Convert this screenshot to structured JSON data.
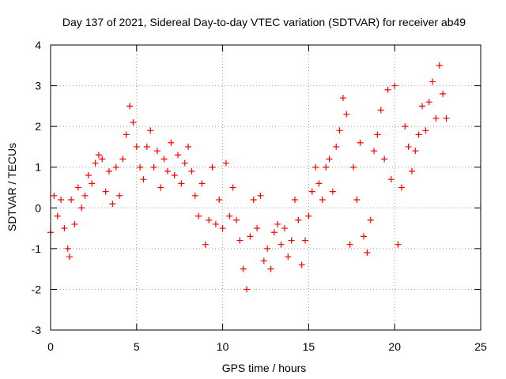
{
  "chart_data": {
    "type": "scatter",
    "title": "Day 137 of 2021, Sidereal Day-to-day VTEC variation (SDTVAR) for receiver ab49",
    "xlabel": "GPS time / hours",
    "ylabel": "SDTVAR / TECUs",
    "xlim": [
      0,
      25
    ],
    "ylim": [
      -3,
      4
    ],
    "xticks": [
      0,
      5,
      10,
      15,
      20,
      25
    ],
    "yticks": [
      -3,
      -2,
      -1,
      0,
      1,
      2,
      3,
      4
    ],
    "grid": true,
    "marker": "+",
    "marker_color": "#ff0000",
    "series": [
      {
        "name": "SDTVAR",
        "x": [
          0,
          0.2,
          0.4,
          0.6,
          0.8,
          1.0,
          1.1,
          1.2,
          1.4,
          1.6,
          1.8,
          2.0,
          2.2,
          2.4,
          2.6,
          2.8,
          3.0,
          3.2,
          3.4,
          3.6,
          3.8,
          4.0,
          4.2,
          4.4,
          4.6,
          4.8,
          5.0,
          5.2,
          5.4,
          5.6,
          5.8,
          6.0,
          6.2,
          6.4,
          6.6,
          6.8,
          7.0,
          7.2,
          7.4,
          7.6,
          7.8,
          8.0,
          8.2,
          8.4,
          8.6,
          8.8,
          9.0,
          9.2,
          9.4,
          9.6,
          9.8,
          10.0,
          10.2,
          10.4,
          10.6,
          10.8,
          11.0,
          11.2,
          11.4,
          11.6,
          11.8,
          12.0,
          12.2,
          12.4,
          12.6,
          12.8,
          13.0,
          13.2,
          13.4,
          13.6,
          13.8,
          14.0,
          14.2,
          14.4,
          14.6,
          14.8,
          15.0,
          15.2,
          15.4,
          15.6,
          15.8,
          16.0,
          16.2,
          16.4,
          16.6,
          16.8,
          17.0,
          17.2,
          17.4,
          17.6,
          17.8,
          18.0,
          18.2,
          18.4,
          18.6,
          18.8,
          19.0,
          19.2,
          19.4,
          19.6,
          19.8,
          20.0,
          20.2,
          20.4,
          20.6,
          20.8,
          21.0,
          21.2,
          21.4,
          21.6,
          21.8,
          22.0,
          22.2,
          22.4,
          22.6,
          22.8,
          23.0
        ],
        "y": [
          -0.6,
          0.3,
          -0.2,
          0.2,
          -0.5,
          -1.0,
          -1.2,
          0.2,
          -0.4,
          0.5,
          0.0,
          0.3,
          0.8,
          0.6,
          1.1,
          1.3,
          1.2,
          0.4,
          0.9,
          0.1,
          1.0,
          0.3,
          1.2,
          1.8,
          2.5,
          2.1,
          1.5,
          1.0,
          0.7,
          1.5,
          1.9,
          1.0,
          1.4,
          0.5,
          1.2,
          0.9,
          1.6,
          0.8,
          1.3,
          0.6,
          1.1,
          1.5,
          0.9,
          0.3,
          -0.2,
          0.6,
          -0.9,
          -0.3,
          1.0,
          -0.4,
          0.2,
          -0.5,
          1.1,
          -0.2,
          0.5,
          -0.3,
          -0.8,
          -1.5,
          -2.0,
          -0.7,
          0.2,
          -0.5,
          0.3,
          -1.3,
          -1.0,
          -1.5,
          -0.6,
          -0.4,
          -0.9,
          -0.5,
          -1.2,
          -0.8,
          0.2,
          -0.3,
          -1.4,
          -0.8,
          -0.2,
          0.4,
          1.0,
          0.6,
          0.2,
          1.0,
          1.2,
          0.4,
          1.5,
          1.9,
          2.7,
          2.3,
          -0.9,
          1.0,
          0.2,
          1.6,
          -0.7,
          -1.1,
          -0.3,
          1.4,
          1.8,
          2.4,
          1.2,
          2.9,
          0.7,
          3.0,
          -0.9,
          0.5,
          2.0,
          1.5,
          0.9,
          1.4,
          1.8,
          2.5,
          1.9,
          2.6,
          3.1,
          2.2,
          3.5,
          2.8,
          2.2
        ]
      }
    ]
  }
}
